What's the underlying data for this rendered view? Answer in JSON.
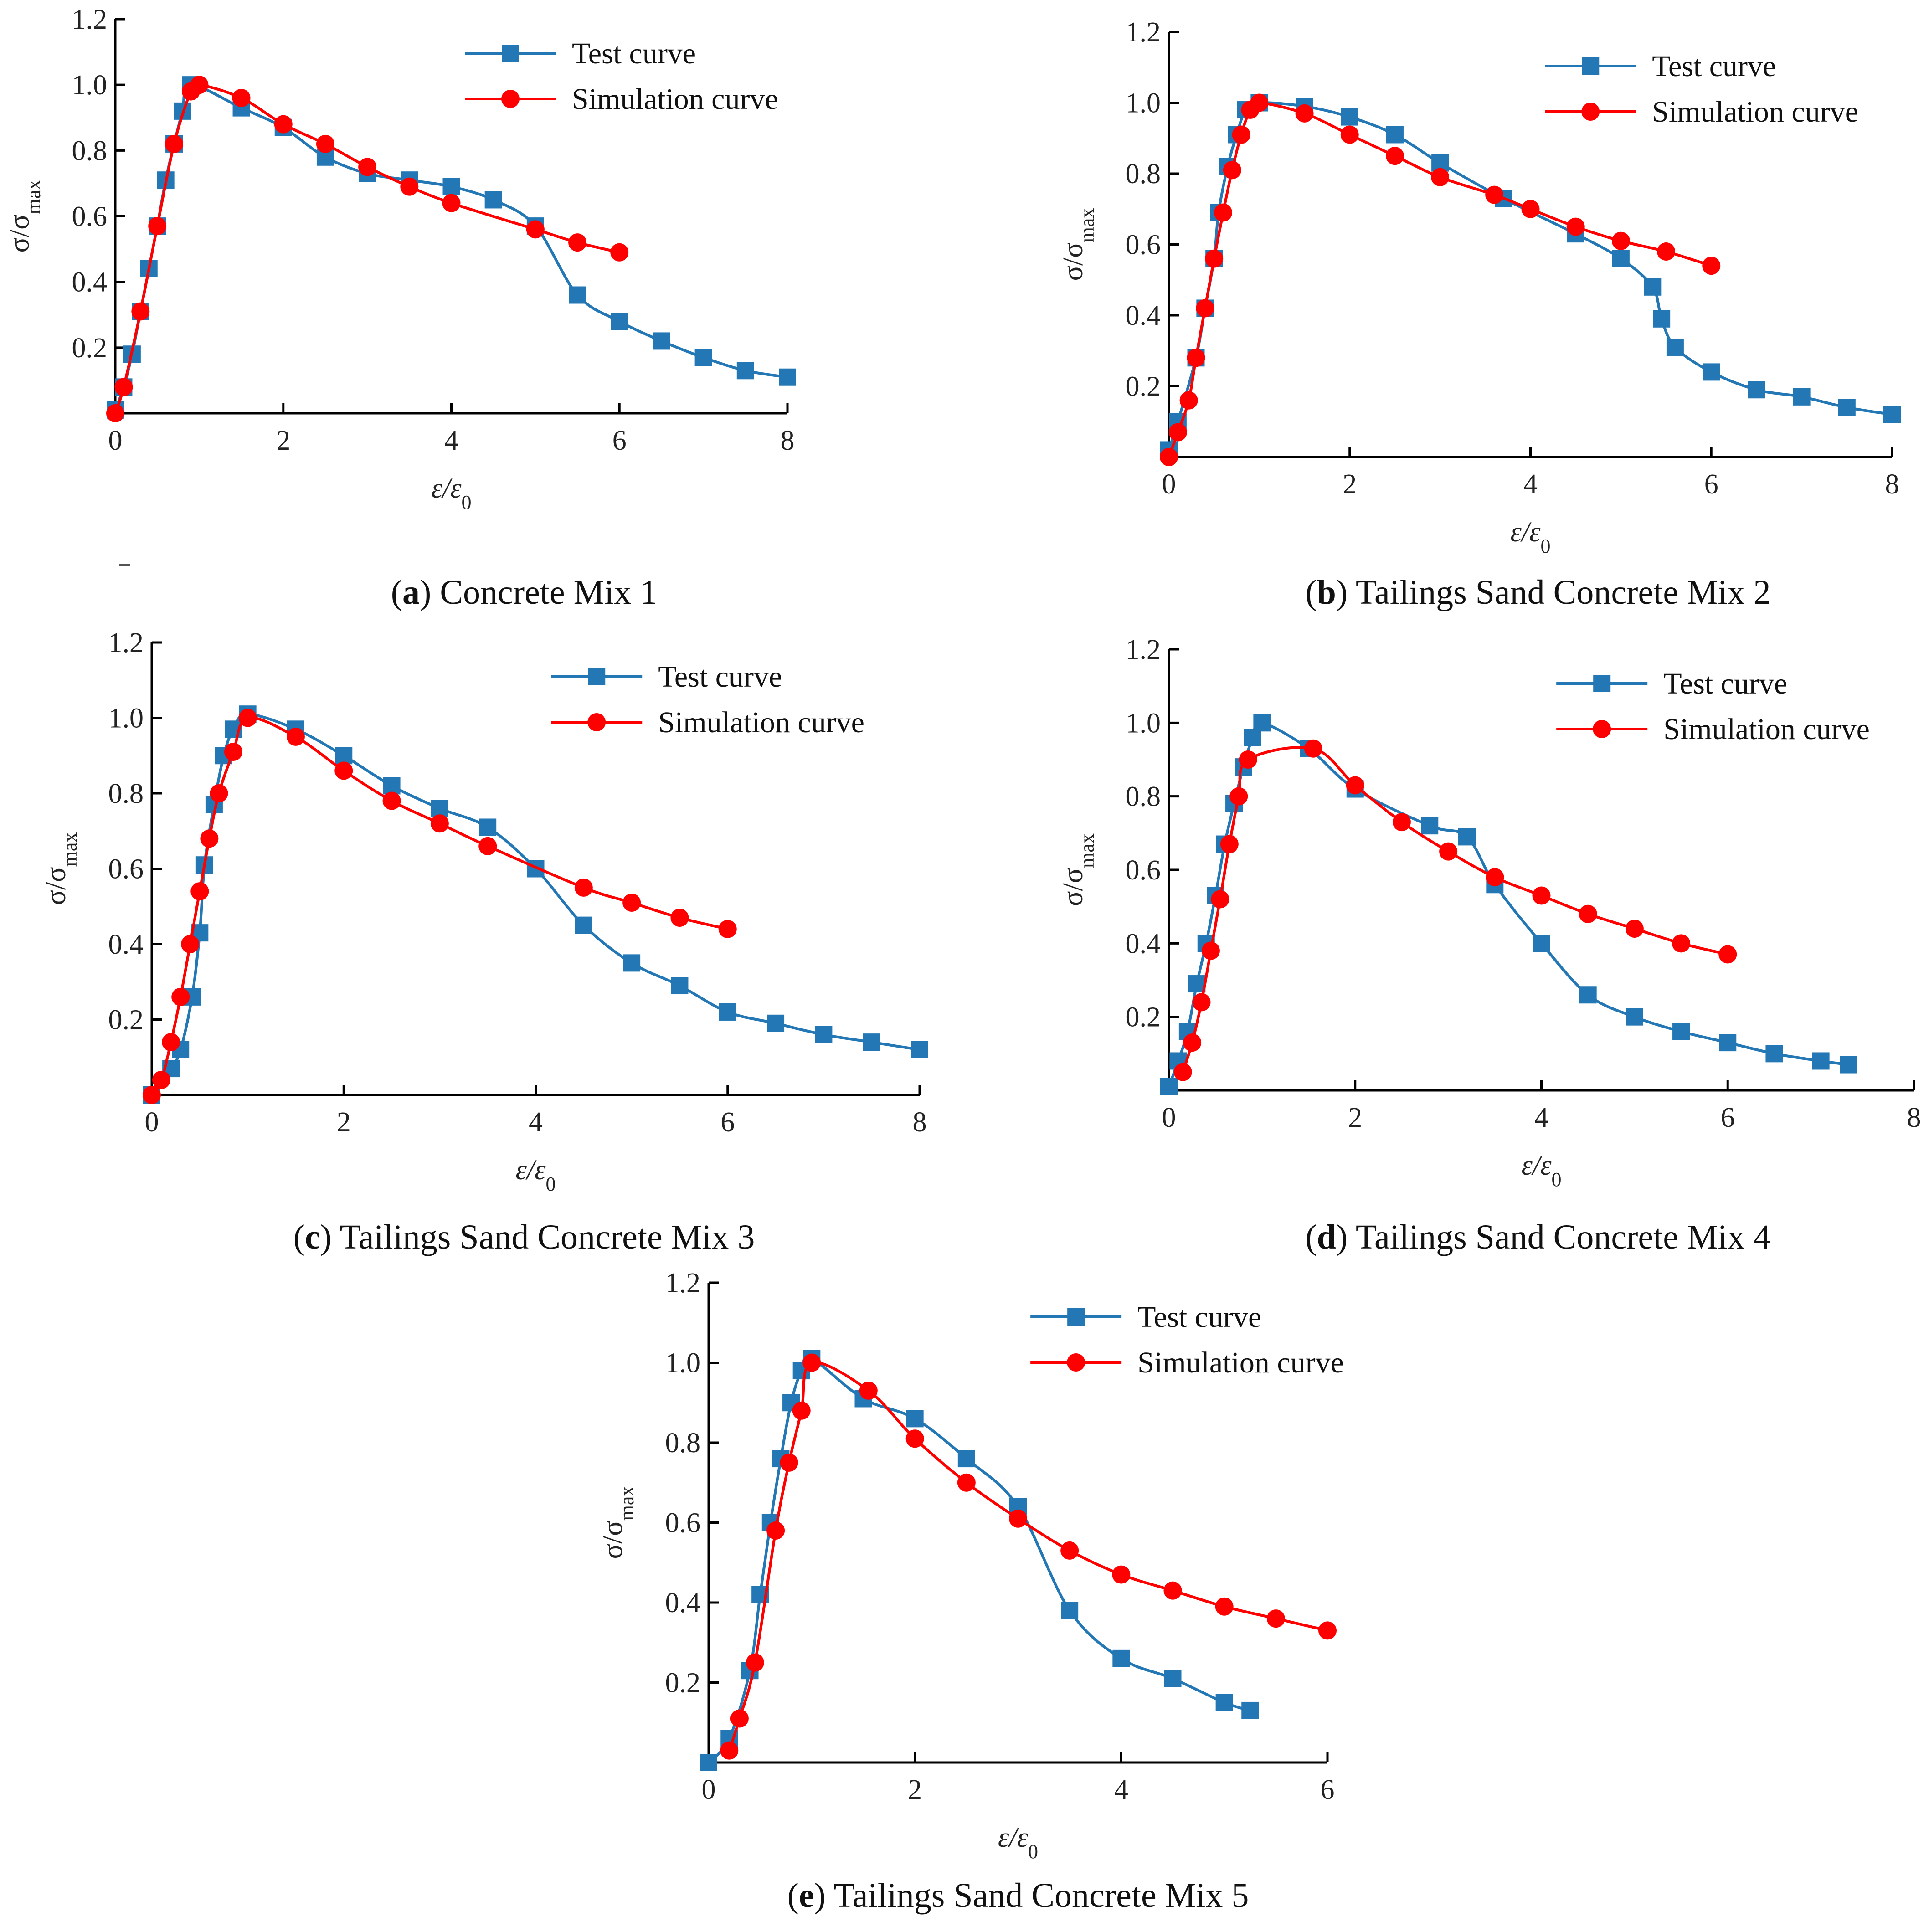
{
  "figure": {
    "colors": {
      "test": "#2277B4",
      "simulation": "#FF0000",
      "axis": "#000000"
    },
    "y_axis_label": "σ/σmax",
    "x_axis_label": "ε/ε0"
  },
  "chart_data": [
    {
      "id": "a",
      "type": "line",
      "caption_letter": "a",
      "caption_text": "Concrete Mix 1",
      "xlabel": "ε/ε0",
      "ylabel": "σ/σmax",
      "xlim": [
        0,
        8
      ],
      "ylim": [
        0,
        1.2
      ],
      "x_ticks": [
        "0",
        "2",
        "4",
        "6",
        "8"
      ],
      "y_ticks": [
        "0.2",
        "0.4",
        "0.6",
        "0.8",
        "1.0",
        "1.2"
      ],
      "legend_position": "top-right",
      "series": [
        {
          "name": "Test curve",
          "marker": "square",
          "color": "#2277B4",
          "x": [
            0,
            0.1,
            0.2,
            0.3,
            0.4,
            0.5,
            0.6,
            0.7,
            0.8,
            0.9,
            1.5,
            2.0,
            2.5,
            3.0,
            3.5,
            4.0,
            4.5,
            5.0,
            5.5,
            6.0,
            6.5,
            7.0,
            7.5,
            8.0
          ],
          "y": [
            0.01,
            0.08,
            0.18,
            0.31,
            0.44,
            0.57,
            0.71,
            0.82,
            0.92,
            1.0,
            0.93,
            0.87,
            0.78,
            0.73,
            0.71,
            0.69,
            0.65,
            0.57,
            0.36,
            0.28,
            0.22,
            0.17,
            0.13,
            0.11
          ]
        },
        {
          "name": "Simulation curve",
          "marker": "circle",
          "color": "#FF0000",
          "x": [
            0,
            0.1,
            0.3,
            0.5,
            0.7,
            0.9,
            1.0,
            1.5,
            2.0,
            2.5,
            3.0,
            3.5,
            4.0,
            5.0,
            5.5,
            6.0
          ],
          "y": [
            0.0,
            0.08,
            0.31,
            0.57,
            0.82,
            0.98,
            1.0,
            0.96,
            0.88,
            0.82,
            0.75,
            0.69,
            0.64,
            0.56,
            0.52,
            0.49
          ]
        }
      ]
    },
    {
      "id": "b",
      "type": "line",
      "caption_letter": "b",
      "caption_text": "Tailings Sand Concrete Mix 2",
      "xlabel": "ε/ε0",
      "ylabel": "σ/σmax",
      "xlim": [
        0,
        8
      ],
      "ylim": [
        0,
        1.2
      ],
      "x_ticks": [
        "0",
        "2",
        "4",
        "6",
        "8"
      ],
      "y_ticks": [
        "0.2",
        "0.4",
        "0.6",
        "0.8",
        "1.0",
        "1.2"
      ],
      "legend_position": "top-right",
      "series": [
        {
          "name": "Test curve",
          "marker": "square",
          "color": "#2277B4",
          "x": [
            0,
            0.1,
            0.3,
            0.4,
            0.5,
            0.55,
            0.65,
            0.75,
            0.85,
            1.0,
            1.5,
            2.0,
            2.5,
            3.0,
            3.7,
            4.5,
            5.0,
            5.35,
            5.45,
            5.6,
            6.0,
            6.5,
            7.0,
            7.5,
            8.0
          ],
          "y": [
            0.02,
            0.1,
            0.28,
            0.42,
            0.56,
            0.69,
            0.82,
            0.91,
            0.98,
            1.0,
            0.99,
            0.96,
            0.91,
            0.83,
            0.73,
            0.63,
            0.56,
            0.48,
            0.39,
            0.31,
            0.24,
            0.19,
            0.17,
            0.14,
            0.12
          ]
        },
        {
          "name": "Simulation curve",
          "marker": "circle",
          "color": "#FF0000",
          "x": [
            0,
            0.1,
            0.22,
            0.3,
            0.4,
            0.5,
            0.6,
            0.7,
            0.8,
            0.9,
            1.0,
            1.5,
            2.0,
            2.5,
            3.0,
            3.6,
            4.0,
            4.5,
            5.0,
            5.5,
            6.0
          ],
          "y": [
            0.0,
            0.07,
            0.16,
            0.28,
            0.42,
            0.56,
            0.69,
            0.81,
            0.91,
            0.98,
            1.0,
            0.97,
            0.91,
            0.85,
            0.79,
            0.74,
            0.7,
            0.65,
            0.61,
            0.58,
            0.54
          ]
        }
      ]
    },
    {
      "id": "c",
      "type": "line",
      "caption_letter": "c",
      "caption_text": "Tailings Sand Concrete Mix 3",
      "xlabel": "ε/ε0",
      "ylabel": "σ/σmax",
      "xlim": [
        0,
        8
      ],
      "ylim": [
        0,
        1.2
      ],
      "x_ticks": [
        "0",
        "2",
        "4",
        "6",
        "8"
      ],
      "y_ticks": [
        "0.2",
        "0.4",
        "0.6",
        "0.8",
        "1.0",
        "1.2"
      ],
      "legend_position": "top-right",
      "series": [
        {
          "name": "Test curve",
          "marker": "square",
          "color": "#2277B4",
          "x": [
            0,
            0.2,
            0.3,
            0.42,
            0.5,
            0.55,
            0.65,
            0.75,
            0.85,
            1.0,
            1.5,
            2.0,
            2.5,
            3.0,
            3.5,
            4.0,
            4.5,
            5.0,
            5.5,
            6.0,
            6.5,
            7.0,
            7.5,
            8.0
          ],
          "y": [
            0.0,
            0.07,
            0.12,
            0.26,
            0.43,
            0.61,
            0.77,
            0.9,
            0.97,
            1.01,
            0.97,
            0.9,
            0.82,
            0.76,
            0.71,
            0.6,
            0.45,
            0.35,
            0.29,
            0.22,
            0.19,
            0.16,
            0.14,
            0.12
          ]
        },
        {
          "name": "Simulation curve",
          "marker": "circle",
          "color": "#FF0000",
          "x": [
            0,
            0.1,
            0.2,
            0.3,
            0.4,
            0.5,
            0.6,
            0.7,
            0.85,
            1.0,
            1.5,
            2.0,
            2.5,
            3.0,
            3.5,
            4.5,
            5.0,
            5.5,
            6.0
          ],
          "y": [
            0.0,
            0.04,
            0.14,
            0.26,
            0.4,
            0.54,
            0.68,
            0.8,
            0.91,
            1.0,
            0.95,
            0.86,
            0.78,
            0.72,
            0.66,
            0.55,
            0.51,
            0.47,
            0.44
          ]
        }
      ]
    },
    {
      "id": "d",
      "type": "line",
      "caption_letter": "d",
      "caption_text": "Tailings Sand Concrete Mix 4",
      "xlabel": "ε/ε0",
      "ylabel": "σ/σmax",
      "xlim": [
        0,
        8
      ],
      "ylim": [
        0,
        1.2
      ],
      "x_ticks": [
        "0",
        "2",
        "4",
        "6",
        "8"
      ],
      "y_ticks": [
        "0.2",
        "0.4",
        "0.6",
        "0.8",
        "1.0",
        "1.2"
      ],
      "legend_position": "top-right",
      "series": [
        {
          "name": "Test curve",
          "marker": "square",
          "color": "#2277B4",
          "x": [
            0,
            0.1,
            0.2,
            0.3,
            0.4,
            0.5,
            0.6,
            0.7,
            0.8,
            0.9,
            1.0,
            1.5,
            2.0,
            2.8,
            3.2,
            3.5,
            4.0,
            4.5,
            5.0,
            5.5,
            6.0,
            6.5,
            7.0,
            7.3
          ],
          "y": [
            0.01,
            0.08,
            0.16,
            0.29,
            0.4,
            0.53,
            0.67,
            0.78,
            0.88,
            0.96,
            1.0,
            0.93,
            0.82,
            0.72,
            0.69,
            0.56,
            0.4,
            0.26,
            0.2,
            0.16,
            0.13,
            0.1,
            0.08,
            0.07
          ]
        },
        {
          "name": "Simulation curve",
          "marker": "circle",
          "color": "#FF0000",
          "x": [
            0.15,
            0.25,
            0.35,
            0.45,
            0.55,
            0.65,
            0.75,
            0.85,
            1.55,
            2.0,
            2.5,
            3.0,
            3.5,
            4.0,
            4.5,
            5.0,
            5.5,
            6.0
          ],
          "y": [
            0.05,
            0.13,
            0.24,
            0.38,
            0.52,
            0.67,
            0.8,
            0.9,
            0.93,
            0.83,
            0.73,
            0.65,
            0.58,
            0.53,
            0.48,
            0.44,
            0.4,
            0.37
          ]
        }
      ]
    },
    {
      "id": "e",
      "type": "line",
      "caption_letter": "e",
      "caption_text": "Tailings Sand Concrete Mix 5",
      "xlabel": "ε/ε0",
      "ylabel": "σ/σmax",
      "xlim": [
        0,
        6
      ],
      "ylim": [
        0,
        1.2
      ],
      "x_ticks": [
        "0",
        "2",
        "4",
        "6"
      ],
      "y_ticks": [
        "0.2",
        "0.4",
        "0.6",
        "0.8",
        "1.0",
        "1.2"
      ],
      "legend_position": "top-right",
      "series": [
        {
          "name": "Test curve",
          "marker": "square",
          "color": "#2277B4",
          "x": [
            0,
            0.2,
            0.4,
            0.5,
            0.6,
            0.7,
            0.8,
            0.9,
            1.0,
            1.5,
            2.0,
            2.5,
            3.0,
            3.5,
            4.0,
            4.5,
            5.0,
            5.25
          ],
          "y": [
            0.0,
            0.06,
            0.23,
            0.42,
            0.6,
            0.76,
            0.9,
            0.98,
            1.01,
            0.91,
            0.86,
            0.76,
            0.64,
            0.38,
            0.26,
            0.21,
            0.15,
            0.13
          ]
        },
        {
          "name": "Simulation curve",
          "marker": "circle",
          "color": "#FF0000",
          "x": [
            0.2,
            0.3,
            0.45,
            0.65,
            0.78,
            0.9,
            1.0,
            1.55,
            2.0,
            2.5,
            3.0,
            3.5,
            4.0,
            4.5,
            5.0,
            5.5,
            6.0
          ],
          "y": [
            0.03,
            0.11,
            0.25,
            0.58,
            0.75,
            0.88,
            1.0,
            0.93,
            0.81,
            0.7,
            0.61,
            0.53,
            0.47,
            0.43,
            0.39,
            0.36,
            0.33
          ]
        }
      ]
    }
  ]
}
